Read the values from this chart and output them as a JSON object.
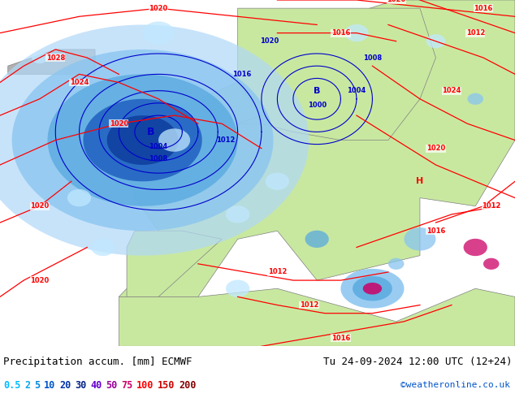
{
  "title_left": "Precipitation accum. [mm] ECMWF",
  "title_right": "Tu 24-09-2024 12:00 UTC (12+24)",
  "credit": "©weatheronline.co.uk",
  "legend_values": [
    "0.5",
    "2",
    "5",
    "10",
    "20",
    "30",
    "40",
    "50",
    "75",
    "100",
    "150",
    "200"
  ],
  "legend_text_colors": [
    "#00bbff",
    "#00aaee",
    "#0088dd",
    "#0055cc",
    "#0033aa",
    "#002288",
    "#6600cc",
    "#990099",
    "#cc0066",
    "#ff0000",
    "#cc0000",
    "#880000"
  ],
  "bg_land_color": "#c8e8a0",
  "bg_sea_color": "#d0ecf8",
  "isobar_color_red": "#ff0000",
  "isobar_color_blue": "#0000cc",
  "figsize": [
    6.34,
    4.9
  ],
  "dpi": 100,
  "map_extent": [
    -25,
    40,
    30,
    72
  ]
}
